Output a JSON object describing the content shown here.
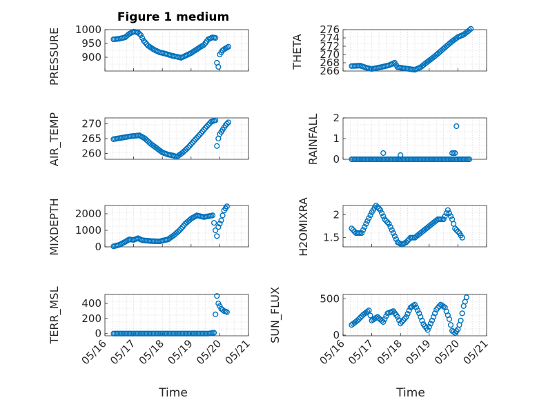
{
  "figure": {
    "title": "Figure 1 medium",
    "xlabel": "Time"
  },
  "colors": {
    "marker": "#0072BD",
    "axis": "#262626"
  },
  "chart_data": [
    {
      "type": "scatter",
      "ylabel": "PRESSURE",
      "xlim": [
        0,
        5
      ],
      "ylim": [
        850,
        1000
      ],
      "yticks": [
        900,
        950,
        1000
      ],
      "xtick_labels": [
        "05/16",
        "05/17",
        "05/18",
        "05/19",
        "05/20",
        "05/21"
      ],
      "grid": true,
      "points": [
        [
          0.3,
          965
        ],
        [
          0.5,
          967
        ],
        [
          0.7,
          972
        ],
        [
          0.85,
          985
        ],
        [
          1.0,
          993
        ],
        [
          1.15,
          990
        ],
        [
          1.25,
          980
        ],
        [
          1.35,
          960
        ],
        [
          1.5,
          942
        ],
        [
          1.7,
          928
        ],
        [
          1.9,
          918
        ],
        [
          2.1,
          913
        ],
        [
          2.35,
          905
        ],
        [
          2.5,
          902
        ],
        [
          2.65,
          898
        ],
        [
          2.8,
          905
        ],
        [
          3.0,
          915
        ],
        [
          3.25,
          932
        ],
        [
          3.45,
          945
        ],
        [
          3.6,
          965
        ],
        [
          3.75,
          972
        ],
        [
          3.85,
          970
        ],
        [
          3.9,
          880
        ],
        [
          3.95,
          865
        ],
        [
          4.0,
          910
        ],
        [
          4.1,
          925
        ],
        [
          4.2,
          932
        ],
        [
          4.3,
          938
        ]
      ]
    },
    {
      "type": "scatter",
      "ylabel": "THETA",
      "xlim": [
        0,
        5
      ],
      "ylim": [
        266,
        276
      ],
      "yticks": [
        266,
        268,
        270,
        272,
        274,
        276
      ],
      "xtick_labels": [
        "05/16",
        "05/17",
        "05/18",
        "05/19",
        "05/20",
        "05/21"
      ],
      "grid": true,
      "points": [
        [
          0.3,
          267.2
        ],
        [
          0.6,
          267.3
        ],
        [
          0.8,
          266.8
        ],
        [
          1.0,
          266.5
        ],
        [
          1.3,
          266.9
        ],
        [
          1.6,
          267.4
        ],
        [
          1.8,
          268.0
        ],
        [
          1.9,
          266.9
        ],
        [
          2.2,
          266.6
        ],
        [
          2.5,
          266.3
        ],
        [
          2.7,
          266.9
        ],
        [
          2.9,
          268.0
        ],
        [
          3.2,
          269.6
        ],
        [
          3.5,
          271.4
        ],
        [
          3.8,
          273.2
        ],
        [
          4.0,
          274.2
        ],
        [
          4.2,
          274.8
        ],
        [
          4.35,
          275.6
        ],
        [
          4.45,
          276.2
        ]
      ]
    },
    {
      "type": "scatter",
      "ylabel": "AIR_TEMP",
      "xlim": [
        0,
        5
      ],
      "ylim": [
        258,
        272
      ],
      "yticks": [
        260,
        265,
        270
      ],
      "xtick_labels": [
        "05/16",
        "05/17",
        "05/18",
        "05/19",
        "05/20",
        "05/21"
      ],
      "grid": true,
      "points": [
        [
          0.3,
          264.8
        ],
        [
          0.6,
          265.3
        ],
        [
          0.9,
          265.8
        ],
        [
          1.2,
          266.1
        ],
        [
          1.4,
          265.0
        ],
        [
          1.6,
          263.2
        ],
        [
          1.8,
          261.8
        ],
        [
          2.0,
          260.3
        ],
        [
          2.2,
          259.6
        ],
        [
          2.4,
          259.2
        ],
        [
          2.5,
          258.8
        ],
        [
          2.7,
          260.2
        ],
        [
          2.9,
          262.0
        ],
        [
          3.1,
          264.2
        ],
        [
          3.3,
          266.3
        ],
        [
          3.5,
          268.6
        ],
        [
          3.7,
          270.7
        ],
        [
          3.85,
          271.2
        ],
        [
          3.9,
          262.5
        ],
        [
          3.95,
          265.0
        ],
        [
          4.0,
          266.5
        ],
        [
          4.1,
          268.0
        ],
        [
          4.2,
          269.5
        ],
        [
          4.3,
          270.5
        ]
      ]
    },
    {
      "type": "scatter",
      "ylabel": "RAINFALL",
      "xlim": [
        0,
        5
      ],
      "ylim": [
        0,
        2
      ],
      "yticks": [
        0,
        1,
        2
      ],
      "xtick_labels": [
        "05/16",
        "05/17",
        "05/18",
        "05/19",
        "05/20",
        "05/21"
      ],
      "grid": true,
      "points": [
        [
          0.3,
          0
        ],
        [
          0.6,
          0
        ],
        [
          0.9,
          0
        ],
        [
          1.2,
          0
        ],
        [
          1.5,
          0
        ],
        [
          1.8,
          0
        ],
        [
          2.1,
          0
        ],
        [
          2.4,
          0
        ],
        [
          2.7,
          0
        ],
        [
          3.0,
          0
        ],
        [
          3.3,
          0
        ],
        [
          3.6,
          0
        ],
        [
          3.9,
          0
        ],
        [
          4.2,
          0
        ],
        [
          4.4,
          0
        ],
        [
          1.4,
          0.3
        ],
        [
          2.0,
          0.2
        ],
        [
          3.8,
          0.3
        ],
        [
          3.9,
          0.3
        ],
        [
          3.95,
          1.6
        ]
      ]
    },
    {
      "type": "scatter",
      "ylabel": "MIXDEPTH",
      "xlim": [
        0,
        5
      ],
      "ylim": [
        0,
        2500
      ],
      "yticks": [
        0,
        1000,
        2000
      ],
      "xtick_labels": [
        "05/16",
        "05/17",
        "05/18",
        "05/19",
        "05/20",
        "05/21"
      ],
      "grid": true,
      "points": [
        [
          0.3,
          30
        ],
        [
          0.5,
          120
        ],
        [
          0.7,
          300
        ],
        [
          0.85,
          450
        ],
        [
          1.0,
          420
        ],
        [
          1.15,
          520
        ],
        [
          1.3,
          400
        ],
        [
          1.6,
          350
        ],
        [
          1.9,
          330
        ],
        [
          2.2,
          450
        ],
        [
          2.4,
          700
        ],
        [
          2.6,
          1000
        ],
        [
          2.8,
          1400
        ],
        [
          3.0,
          1700
        ],
        [
          3.2,
          1900
        ],
        [
          3.45,
          1800
        ],
        [
          3.6,
          1850
        ],
        [
          3.75,
          1900
        ],
        [
          3.85,
          1000
        ],
        [
          3.9,
          650
        ],
        [
          3.95,
          1200
        ],
        [
          4.05,
          1600
        ],
        [
          4.15,
          2200
        ],
        [
          4.25,
          2450
        ]
      ]
    },
    {
      "type": "scatter",
      "ylabel": "H2OMIXRA",
      "xlim": [
        0,
        5
      ],
      "ylim": [
        1.3,
        2.2
      ],
      "yticks": [
        1.5,
        2
      ],
      "xtick_labels": [
        "05/16",
        "05/17",
        "05/18",
        "05/19",
        "05/20",
        "05/21"
      ],
      "grid": true,
      "points": [
        [
          0.3,
          1.7
        ],
        [
          0.45,
          1.6
        ],
        [
          0.65,
          1.6
        ],
        [
          0.8,
          1.8
        ],
        [
          1.0,
          2.05
        ],
        [
          1.15,
          2.2
        ],
        [
          1.3,
          2.1
        ],
        [
          1.45,
          1.9
        ],
        [
          1.6,
          1.8
        ],
        [
          1.75,
          1.6
        ],
        [
          1.9,
          1.4
        ],
        [
          2.05,
          1.35
        ],
        [
          2.2,
          1.4
        ],
        [
          2.35,
          1.5
        ],
        [
          2.5,
          1.5
        ],
        [
          2.7,
          1.6
        ],
        [
          2.9,
          1.7
        ],
        [
          3.1,
          1.8
        ],
        [
          3.3,
          1.9
        ],
        [
          3.5,
          1.9
        ],
        [
          3.65,
          2.1
        ],
        [
          3.8,
          1.9
        ],
        [
          3.9,
          1.7
        ],
        [
          4.05,
          1.6
        ],
        [
          4.15,
          1.5
        ]
      ]
    },
    {
      "type": "scatter",
      "ylabel": "TERR_MSL",
      "xlim": [
        0,
        5
      ],
      "ylim": [
        -30,
        520
      ],
      "yticks": [
        0,
        200,
        400
      ],
      "xtick_labels": [
        "05/16",
        "05/17",
        "05/18",
        "05/19",
        "05/20",
        "05/21"
      ],
      "grid": true,
      "points": [
        [
          0.3,
          0
        ],
        [
          0.6,
          0
        ],
        [
          0.9,
          0
        ],
        [
          1.2,
          0
        ],
        [
          1.5,
          0
        ],
        [
          1.8,
          0
        ],
        [
          2.1,
          0
        ],
        [
          2.4,
          0
        ],
        [
          2.7,
          0
        ],
        [
          3.0,
          0
        ],
        [
          3.3,
          0
        ],
        [
          3.6,
          0
        ],
        [
          3.8,
          10
        ],
        [
          3.9,
          500
        ],
        [
          3.95,
          400
        ],
        [
          4.05,
          330
        ],
        [
          4.15,
          300
        ],
        [
          4.25,
          285
        ]
      ]
    },
    {
      "type": "scatter",
      "ylabel": "SUN_FLUX",
      "xlim": [
        0,
        5
      ],
      "ylim": [
        -10,
        560
      ],
      "yticks": [
        0,
        500
      ],
      "xtick_labels": [
        "05/16",
        "05/17",
        "05/18",
        "05/19",
        "05/20",
        "05/21"
      ],
      "grid": true,
      "points": [
        [
          0.3,
          140
        ],
        [
          0.5,
          200
        ],
        [
          0.7,
          280
        ],
        [
          0.9,
          340
        ],
        [
          1.0,
          200
        ],
        [
          1.2,
          250
        ],
        [
          1.4,
          180
        ],
        [
          1.55,
          300
        ],
        [
          1.75,
          330
        ],
        [
          1.9,
          250
        ],
        [
          2.0,
          160
        ],
        [
          2.2,
          250
        ],
        [
          2.35,
          380
        ],
        [
          2.5,
          420
        ],
        [
          2.65,
          300
        ],
        [
          2.8,
          150
        ],
        [
          2.95,
          70
        ],
        [
          3.1,
          200
        ],
        [
          3.25,
          350
        ],
        [
          3.4,
          420
        ],
        [
          3.55,
          380
        ],
        [
          3.7,
          220
        ],
        [
          3.8,
          60
        ],
        [
          3.9,
          30
        ],
        [
          4.0,
          80
        ],
        [
          4.1,
          200
        ],
        [
          4.2,
          400
        ],
        [
          4.3,
          520
        ]
      ]
    }
  ]
}
